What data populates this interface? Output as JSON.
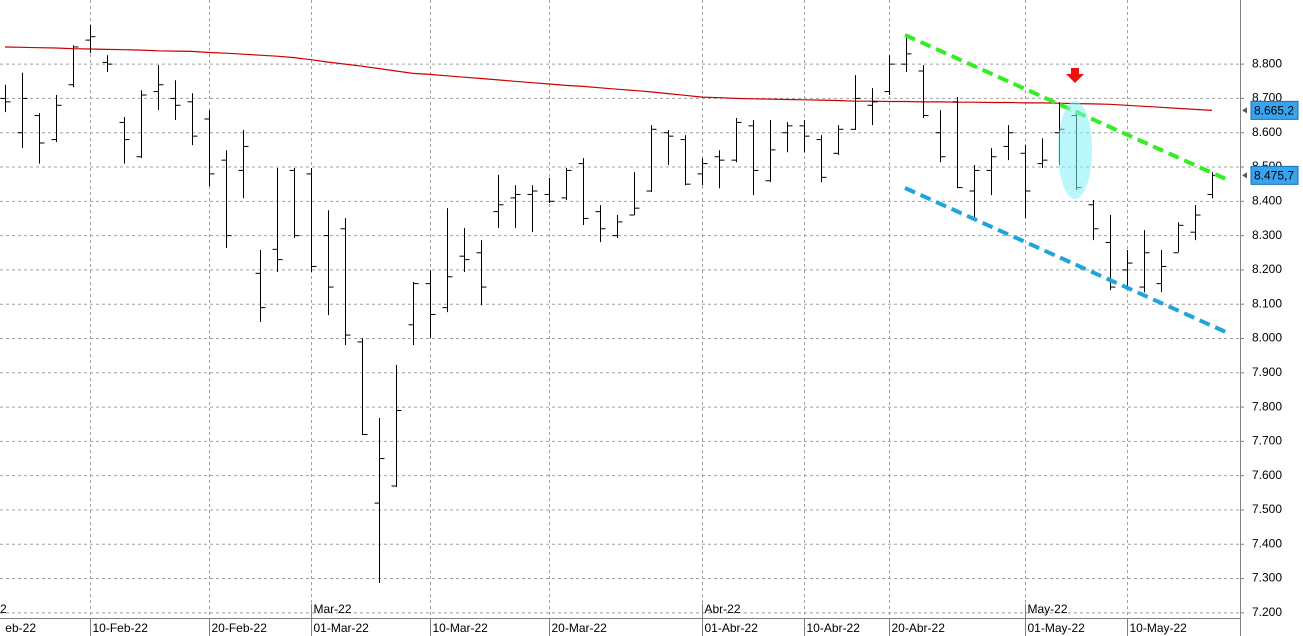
{
  "chart_data": {
    "type": "ohlc",
    "ylim": [
      7185,
      8987
    ],
    "yticks": [
      {
        "value": 7200,
        "label": "7.200"
      },
      {
        "value": 7300,
        "label": "7.300"
      },
      {
        "value": 7400,
        "label": "7.400"
      },
      {
        "value": 7500,
        "label": "7.500"
      },
      {
        "value": 7600,
        "label": "7.600"
      },
      {
        "value": 7700,
        "label": "7.700"
      },
      {
        "value": 7800,
        "label": "7.800"
      },
      {
        "value": 7900,
        "label": "7.900"
      },
      {
        "value": 8000,
        "label": "8.000"
      },
      {
        "value": 8100,
        "label": "8.100"
      },
      {
        "value": 8200,
        "label": "8.200"
      },
      {
        "value": 8300,
        "label": "8.300"
      },
      {
        "value": 8400,
        "label": "8.400"
      },
      {
        "value": 8500,
        "label": "8.500"
      },
      {
        "value": 8600,
        "label": "8.600"
      },
      {
        "value": 8700,
        "label": "8.700"
      },
      {
        "value": 8800,
        "label": "8.800"
      }
    ],
    "grid": true,
    "cut_labels": {
      "date": "eb-22",
      "month": "2"
    },
    "categories": [
      null,
      null,
      null,
      null,
      null,
      "10-Feb-22",
      null,
      null,
      null,
      null,
      null,
      null,
      "20-Feb-22",
      null,
      null,
      null,
      null,
      null,
      "01-Mar-22",
      null,
      null,
      null,
      null,
      null,
      null,
      "10-Mar-22",
      null,
      null,
      null,
      null,
      null,
      null,
      "20-Mar-22",
      null,
      null,
      null,
      null,
      null,
      null,
      null,
      null,
      "01-Abr-22",
      null,
      null,
      null,
      null,
      null,
      "10-Abr-22",
      null,
      null,
      null,
      null,
      "20-Abr-22",
      null,
      null,
      null,
      null,
      null,
      null,
      null,
      "01-May-22",
      null,
      null,
      null,
      null,
      null,
      "10-May-22",
      null,
      null,
      null,
      null,
      null
    ],
    "month_labels": [
      null,
      null,
      null,
      null,
      null,
      null,
      null,
      null,
      null,
      null,
      null,
      null,
      null,
      null,
      null,
      null,
      null,
      null,
      "Mar-22",
      null,
      null,
      null,
      null,
      null,
      null,
      null,
      null,
      null,
      null,
      null,
      null,
      null,
      null,
      null,
      null,
      null,
      null,
      null,
      null,
      null,
      null,
      "Abr-22",
      null,
      null,
      null,
      null,
      null,
      null,
      null,
      null,
      null,
      null,
      null,
      null,
      null,
      null,
      null,
      null,
      null,
      null,
      "May-22",
      null,
      null,
      null,
      null,
      null,
      null,
      null,
      null,
      null,
      null,
      null
    ],
    "ohlc": {
      "color": "#000000",
      "open": [
        8700,
        8600,
        8650,
        8580,
        8740,
        8870,
        8805,
        8630,
        8530,
        8720,
        8700,
        8690,
        8640,
        8520,
        8490,
        8190,
        8260,
        8490,
        8480,
        8300,
        8320,
        7990,
        7520,
        7570,
        8040,
        8160,
        8090,
        8240,
        8250,
        8370,
        8410,
        8420,
        8420,
        8410,
        8510,
        8370,
        8300,
        8360,
        8430,
        8600,
        8580,
        8480,
        8530,
        8520,
        8620,
        8460,
        8600,
        8620,
        8580,
        8540,
        8610,
        8680,
        8720,
        8800,
        8780,
        8600,
        8690,
        8430,
        8490,
        8560,
        8540,
        8510,
        8600,
        8650,
        8390,
        8280,
        8200,
        8150,
        8160,
        8250,
        8310,
        8420
      ],
      "high": [
        8740,
        8775,
        8657,
        8710,
        8855,
        8914,
        8826,
        8646,
        8724,
        8797,
        8753,
        8715,
        8666,
        8549,
        8608,
        8258,
        8497,
        8497,
        8497,
        8374,
        8351,
        8001,
        7768,
        7923,
        8165,
        8200,
        8380,
        8322,
        8287,
        8477,
        8447,
        8447,
        8468,
        8497,
        8526,
        8389,
        8360,
        8485,
        8622,
        8608,
        8593,
        8526,
        8549,
        8643,
        8637,
        8637,
        8631,
        8637,
        8593,
        8622,
        8768,
        8730,
        8826,
        8885,
        8797,
        8666,
        8704,
        8506,
        8555,
        8622,
        8564,
        8584,
        8689,
        8666,
        8404,
        8360,
        8258,
        8316,
        8258,
        8339,
        8389,
        8485
      ],
      "low": [
        8660,
        8555,
        8510,
        8573,
        8733,
        8832,
        8777,
        8510,
        8526,
        8666,
        8637,
        8564,
        8444,
        8264,
        8409,
        8048,
        8194,
        8293,
        8194,
        8068,
        7981,
        7719,
        7287,
        7567,
        7981,
        8001,
        8077,
        8194,
        8097,
        8322,
        8322,
        8310,
        8395,
        8404,
        8331,
        8281,
        8293,
        8360,
        8427,
        8506,
        8447,
        8447,
        8438,
        8514,
        8418,
        8456,
        8543,
        8543,
        8456,
        8535,
        8608,
        8622,
        8710,
        8777,
        8643,
        8514,
        8438,
        8351,
        8418,
        8520,
        8351,
        8497,
        8506,
        8433,
        8287,
        8141,
        8141,
        8135,
        8135,
        8252,
        8287,
        8409
      ],
      "close": [
        8690,
        8700,
        8570,
        8680,
        8850,
        8880,
        8800,
        8580,
        8710,
        8740,
        8680,
        8590,
        8480,
        8300,
        8560,
        8090,
        8230,
        8300,
        8210,
        8150,
        8010,
        7720,
        7650,
        7790,
        8160,
        8070,
        8180,
        8230,
        8150,
        8390,
        8420,
        8430,
        8400,
        8490,
        8350,
        8320,
        8340,
        8380,
        8610,
        8590,
        8450,
        8510,
        8520,
        8630,
        8490,
        8550,
        8620,
        8590,
        8470,
        8610,
        8700,
        8690,
        8800,
        8830,
        8650,
        8530,
        8440,
        8490,
        8530,
        8600,
        8430,
        8520,
        8610,
        8440,
        8320,
        8150,
        8220,
        8250,
        8210,
        8330,
        8360,
        8475.7
      ],
      "last_close_label": "8.475,7"
    },
    "moving_average": {
      "color": "#cc0000",
      "values": [
        8850,
        8849,
        8848,
        8847,
        8845,
        8844,
        8843,
        8842,
        8841,
        8839,
        8838,
        8837,
        8834,
        8832,
        8829,
        8826,
        8823,
        8819,
        8813,
        8806,
        8800,
        8794,
        8787,
        8780,
        8773,
        8770,
        8766,
        8762,
        8758,
        8754,
        8750,
        8746,
        8742,
        8738,
        8735,
        8731,
        8727,
        8723,
        8719,
        8714,
        8709,
        8704,
        8702,
        8700,
        8699,
        8698,
        8697,
        8696,
        8695,
        8694,
        8692,
        8692,
        8691,
        8691,
        8690,
        8690,
        8689,
        8689,
        8688,
        8688,
        8687,
        8687,
        8686,
        8685,
        8684,
        8683,
        8680,
        8677,
        8674,
        8671,
        8668,
        8665.2
      ],
      "last_label": "8.665,2"
    }
  }
}
